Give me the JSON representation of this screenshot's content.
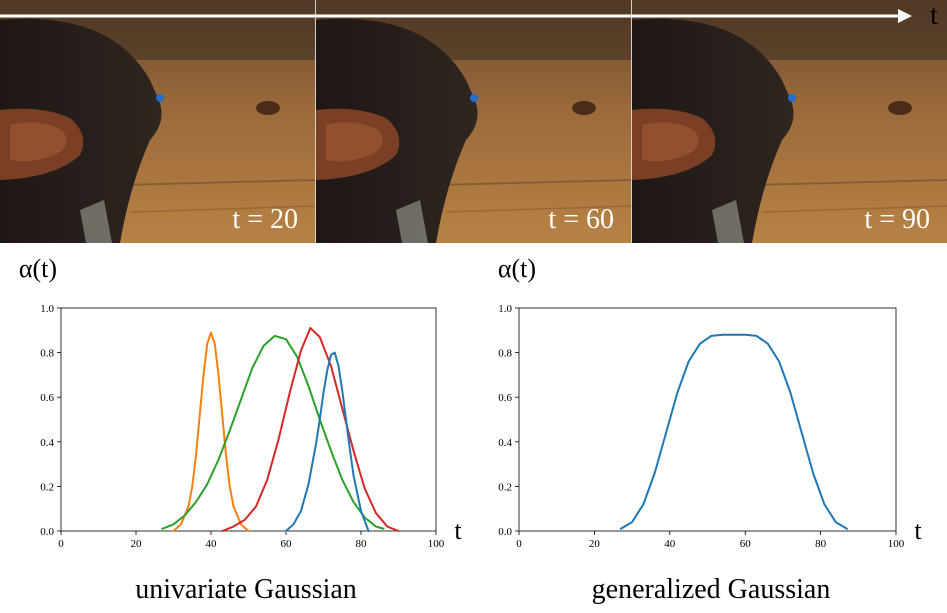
{
  "timeline": {
    "axis_label": "t",
    "frames": [
      {
        "label": "t = 20"
      },
      {
        "label": "t = 60"
      },
      {
        "label": "t = 90"
      }
    ]
  },
  "chart_data": [
    {
      "type": "line",
      "title": "",
      "caption": "univariate Gaussian",
      "ylabel": "α(t)",
      "xlabel": "t",
      "xlim": [
        0,
        100
      ],
      "ylim": [
        0,
        1.0
      ],
      "xticks": [
        "0",
        "20",
        "40",
        "60",
        "80",
        "100"
      ],
      "yticks": [
        "0.0",
        "0.2",
        "0.4",
        "0.6",
        "0.8",
        "1.0"
      ],
      "grid": false,
      "series": [
        {
          "color": "#ff7f0e",
          "x": [
            30,
            32,
            34,
            35,
            36,
            37,
            38,
            39,
            40,
            41,
            42,
            43,
            44,
            45,
            46,
            48,
            50
          ],
          "y": [
            0.0,
            0.03,
            0.11,
            0.2,
            0.34,
            0.52,
            0.7,
            0.84,
            0.89,
            0.84,
            0.7,
            0.52,
            0.34,
            0.2,
            0.11,
            0.03,
            0.0
          ]
        },
        {
          "color": "#2ca02c",
          "x": [
            27,
            30,
            33,
            36,
            39,
            42,
            45,
            48,
            51,
            54,
            57,
            60,
            63,
            66,
            69,
            72,
            75,
            78,
            81,
            84,
            86
          ],
          "y": [
            0.01,
            0.03,
            0.07,
            0.13,
            0.21,
            0.32,
            0.45,
            0.59,
            0.73,
            0.83,
            0.875,
            0.86,
            0.78,
            0.65,
            0.5,
            0.36,
            0.23,
            0.13,
            0.06,
            0.02,
            0.01
          ]
        },
        {
          "color": "#d62728",
          "x": [
            43,
            46,
            49,
            52,
            55,
            58,
            61,
            64,
            66.5,
            69,
            72,
            75,
            78,
            81,
            84,
            87,
            90
          ],
          "y": [
            0.0,
            0.02,
            0.05,
            0.11,
            0.23,
            0.41,
            0.62,
            0.81,
            0.91,
            0.87,
            0.74,
            0.55,
            0.36,
            0.19,
            0.08,
            0.02,
            0.0
          ]
        },
        {
          "color": "#1f77b4",
          "x": [
            60,
            62,
            64,
            66,
            68,
            69,
            70,
            71,
            72,
            73,
            74,
            75,
            76,
            77,
            78,
            80,
            82
          ],
          "y": [
            0.0,
            0.03,
            0.09,
            0.21,
            0.39,
            0.5,
            0.62,
            0.72,
            0.79,
            0.8,
            0.74,
            0.63,
            0.5,
            0.37,
            0.25,
            0.09,
            0.0
          ]
        }
      ]
    },
    {
      "type": "line",
      "title": "",
      "caption": "generalized Gaussian",
      "ylabel": "α(t)",
      "xlabel": "t",
      "xlim": [
        0,
        100
      ],
      "ylim": [
        0,
        1.0
      ],
      "xticks": [
        "0",
        "20",
        "40",
        "60",
        "80",
        "100"
      ],
      "yticks": [
        "0.0",
        "0.2",
        "0.4",
        "0.6",
        "0.8",
        "1.0"
      ],
      "grid": false,
      "series": [
        {
          "color": "#1f77b4",
          "x": [
            27,
            30,
            33,
            36,
            39,
            42,
            45,
            48,
            51,
            54,
            57,
            60,
            63,
            66,
            69,
            72,
            75,
            78,
            81,
            84,
            87
          ],
          "y": [
            0.01,
            0.04,
            0.12,
            0.26,
            0.44,
            0.62,
            0.76,
            0.84,
            0.875,
            0.88,
            0.88,
            0.88,
            0.875,
            0.84,
            0.76,
            0.62,
            0.44,
            0.26,
            0.12,
            0.04,
            0.01
          ]
        }
      ]
    }
  ]
}
